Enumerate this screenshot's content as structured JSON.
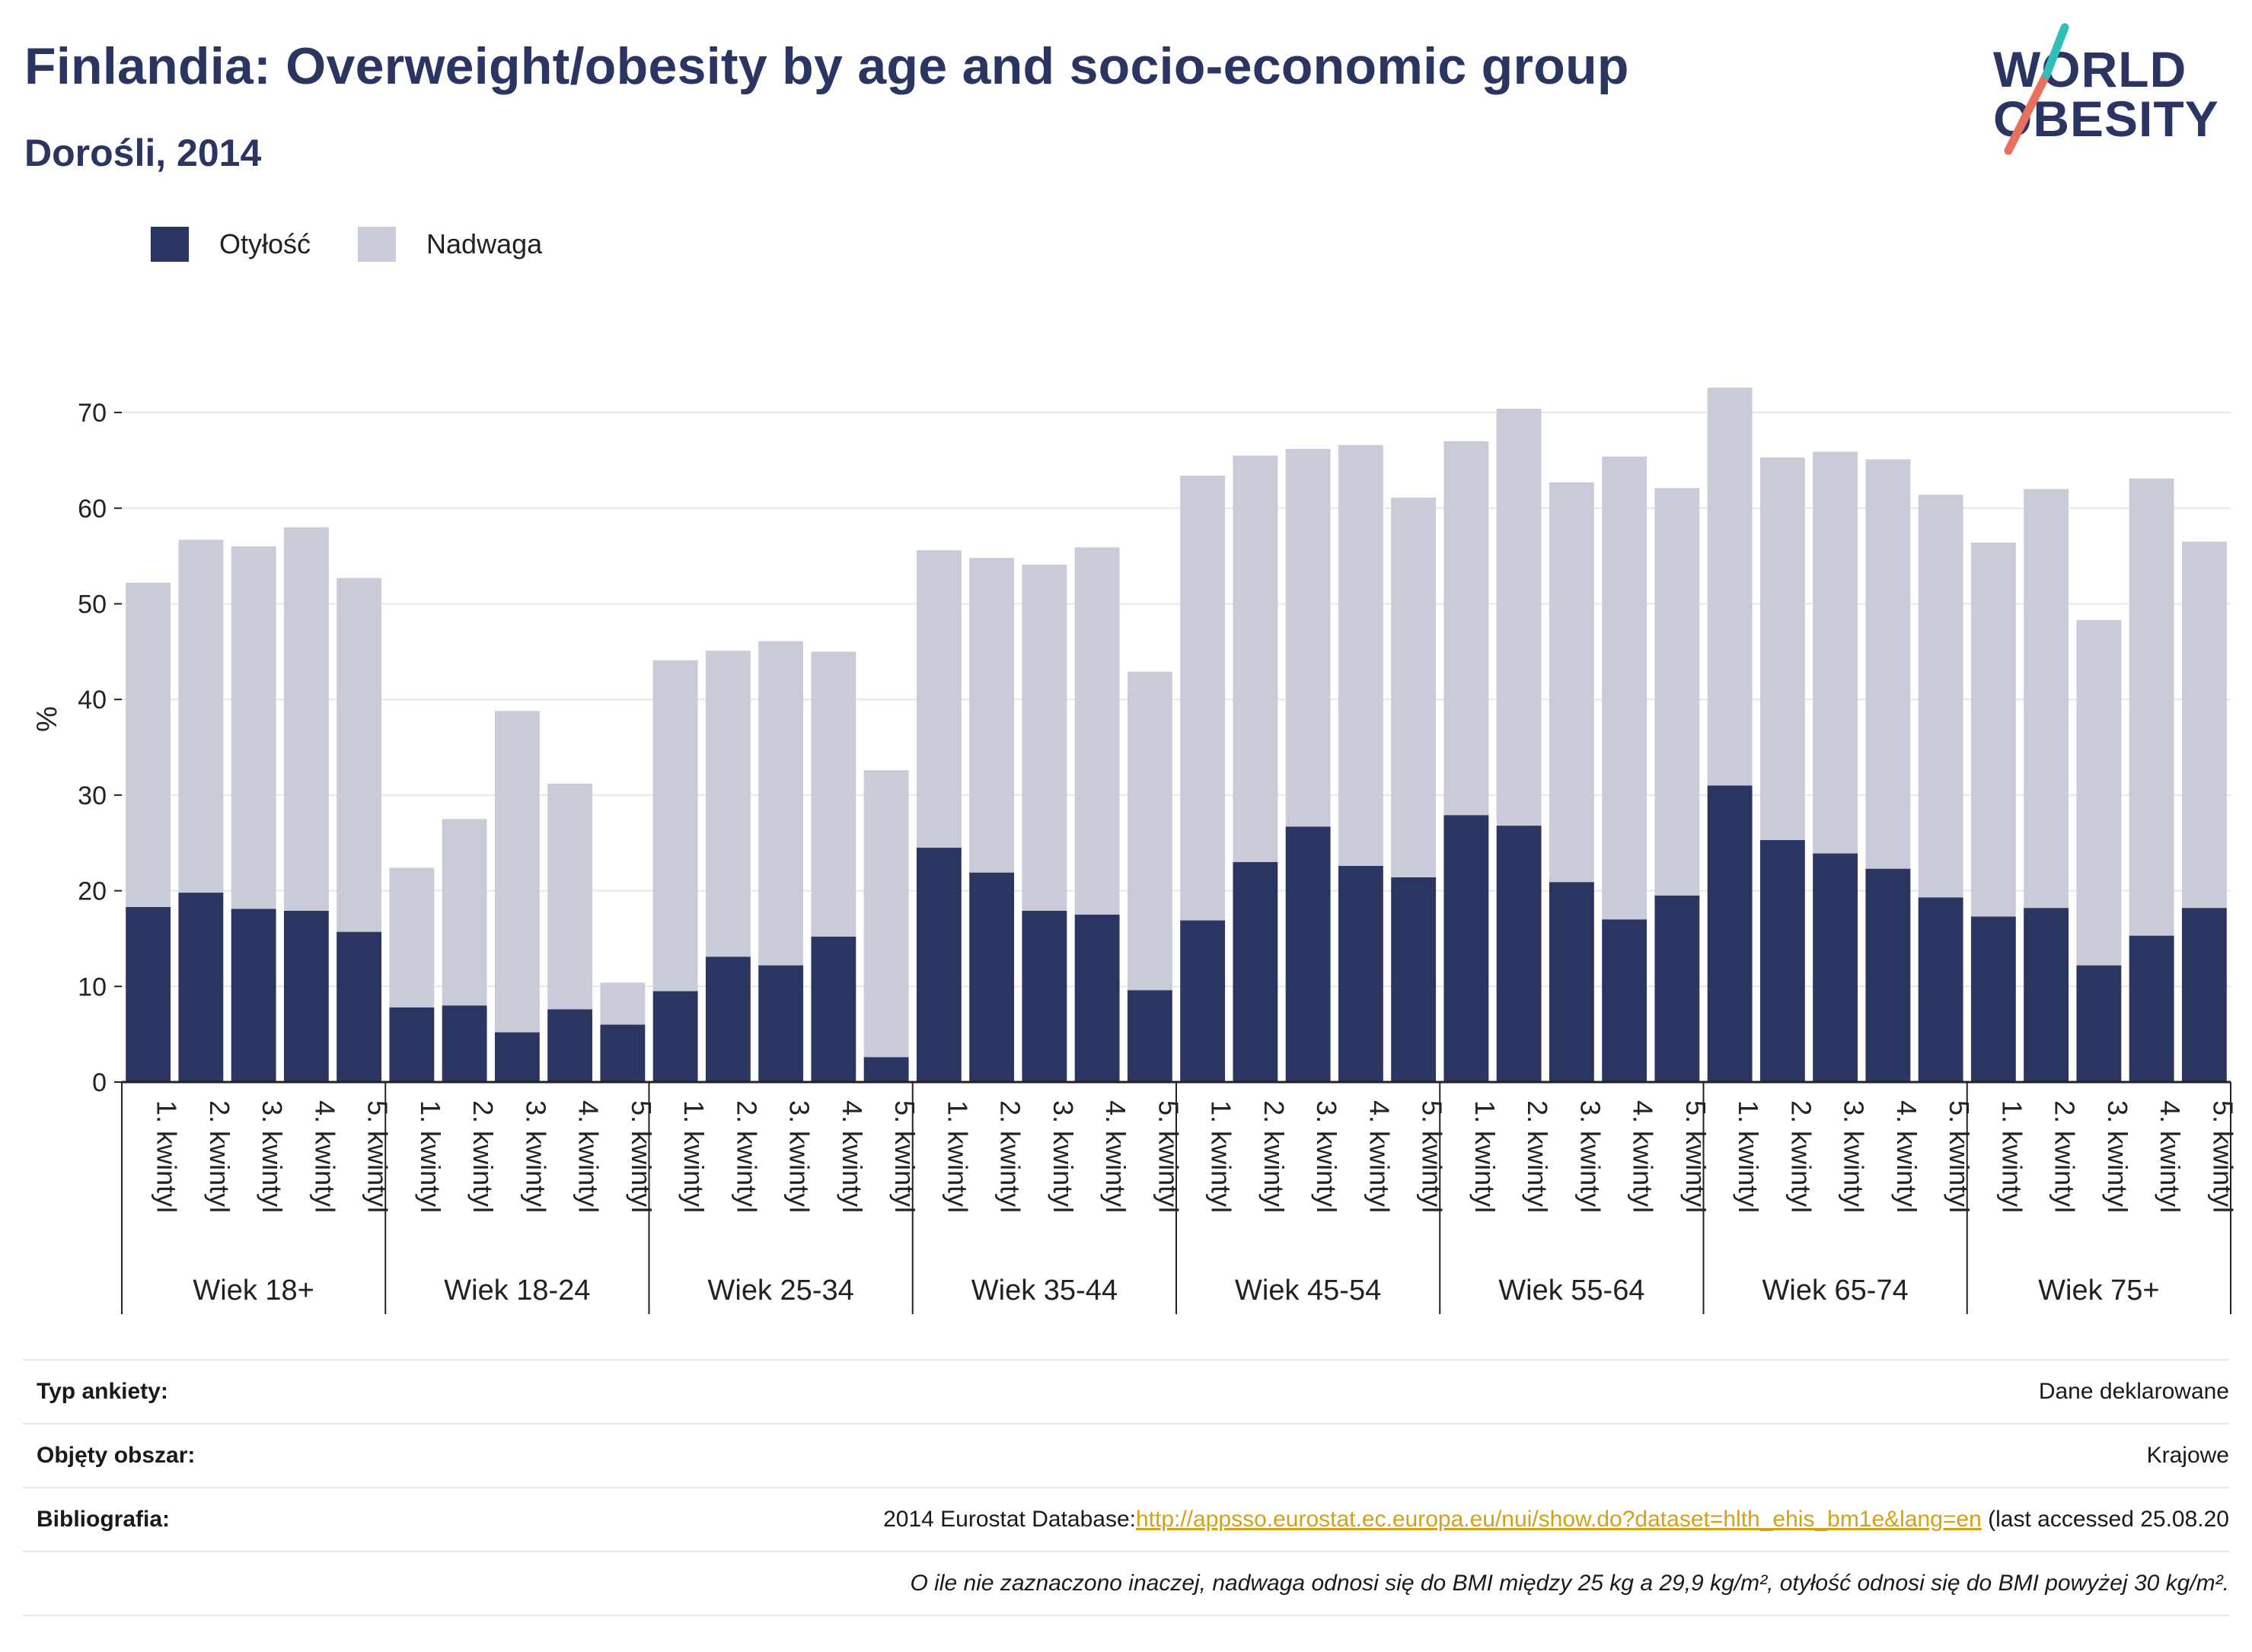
{
  "header": {
    "title": "Finlandia: Overweight/obesity by age and socio-economic group",
    "subtitle": "Dorośli, 2014"
  },
  "logo": {
    "line1": "WORLD",
    "line2": "OBESITY"
  },
  "colors": {
    "obesity": "#2b3561",
    "overweight": "#cacbd8",
    "title": "#2b3561",
    "link": "#d4a017"
  },
  "chart_data": {
    "type": "bar",
    "stacked": true,
    "ylabel": "%",
    "ylim": [
      0,
      75
    ],
    "yticks": [
      0,
      10,
      20,
      30,
      40,
      50,
      60,
      70
    ],
    "grid": true,
    "legend_position": "top-left",
    "groups": [
      {
        "label": "Wiek 18+",
        "categories": [
          "1. kwintyl",
          "2. kwintyl",
          "3. kwintyl",
          "4. kwintyl",
          "5. kwintyl"
        ],
        "obesity": [
          18.3,
          19.8,
          18.1,
          17.9,
          15.7
        ],
        "total": [
          52.2,
          56.7,
          56.0,
          58.0,
          52.7
        ]
      },
      {
        "label": "Wiek 18-24",
        "categories": [
          "1. kwintyl",
          "2. kwintyl",
          "3. kwintyl",
          "4. kwintyl",
          "5. kwintyl"
        ],
        "obesity": [
          7.8,
          8.0,
          5.2,
          7.6,
          6.0
        ],
        "total": [
          22.4,
          27.5,
          38.8,
          31.2,
          10.4
        ]
      },
      {
        "label": "Wiek 25-34",
        "categories": [
          "1. kwintyl",
          "2. kwintyl",
          "3. kwintyl",
          "4. kwintyl",
          "5. kwintyl"
        ],
        "obesity": [
          9.5,
          13.1,
          12.2,
          15.2,
          2.6
        ],
        "total": [
          44.1,
          45.1,
          46.1,
          45.0,
          32.6
        ]
      },
      {
        "label": "Wiek 35-44",
        "categories": [
          "1. kwintyl",
          "2. kwintyl",
          "3. kwintyl",
          "4. kwintyl",
          "5. kwintyl"
        ],
        "obesity": [
          24.5,
          21.9,
          17.9,
          17.5,
          9.6
        ],
        "total": [
          55.6,
          54.8,
          54.1,
          55.9,
          42.9
        ]
      },
      {
        "label": "Wiek 45-54",
        "categories": [
          "1. kwintyl",
          "2. kwintyl",
          "3. kwintyl",
          "4. kwintyl",
          "5. kwintyl"
        ],
        "obesity": [
          16.9,
          23.0,
          26.7,
          22.6,
          21.4
        ],
        "total": [
          63.4,
          65.5,
          66.2,
          66.6,
          61.1
        ]
      },
      {
        "label": "Wiek 55-64",
        "categories": [
          "1. kwintyl",
          "2. kwintyl",
          "3. kwintyl",
          "4. kwintyl",
          "5. kwintyl"
        ],
        "obesity": [
          27.9,
          26.8,
          20.9,
          17.0,
          19.5
        ],
        "total": [
          67.0,
          70.4,
          62.7,
          65.4,
          62.1
        ]
      },
      {
        "label": "Wiek 65-74",
        "categories": [
          "1. kwintyl",
          "2. kwintyl",
          "3. kwintyl",
          "4. kwintyl",
          "5. kwintyl"
        ],
        "obesity": [
          31.0,
          25.3,
          23.9,
          22.3,
          19.3
        ],
        "total": [
          72.6,
          65.3,
          65.9,
          65.1,
          61.4
        ]
      },
      {
        "label": "Wiek 75+",
        "categories": [
          "1. kwintyl",
          "2. kwintyl",
          "3. kwintyl",
          "4. kwintyl",
          "5. kwintyl"
        ],
        "obesity": [
          17.3,
          18.2,
          12.2,
          15.3,
          18.2
        ],
        "total": [
          56.4,
          62.0,
          48.3,
          63.1,
          56.5
        ]
      }
    ],
    "series": [
      {
        "name": "Otyłość",
        "color": "#2b3561"
      },
      {
        "name": "Nadwaga",
        "color": "#cacbd8"
      }
    ]
  },
  "info": {
    "survey_type_label": "Typ ankiety:",
    "survey_type_value": "Dane deklarowane",
    "coverage_label": "Objęty obszar:",
    "coverage_value": "Krajowe",
    "bibliography_label": "Bibliografia:",
    "bibliography_prefix": "2014 Eurostat Database:",
    "bibliography_link": "http://appsso.eurostat.ec.europa.eu/nui/show.do?dataset=hlth_ehis_bm1e&lang=en",
    "bibliography_suffix": " (last accessed 25.08.20",
    "note": "O ile nie zaznaczono inaczej, nadwaga odnosi się do BMI między 25 kg a 29,9 kg/m², otyłość odnosi się do BMI powyżej 30 kg/m²."
  }
}
